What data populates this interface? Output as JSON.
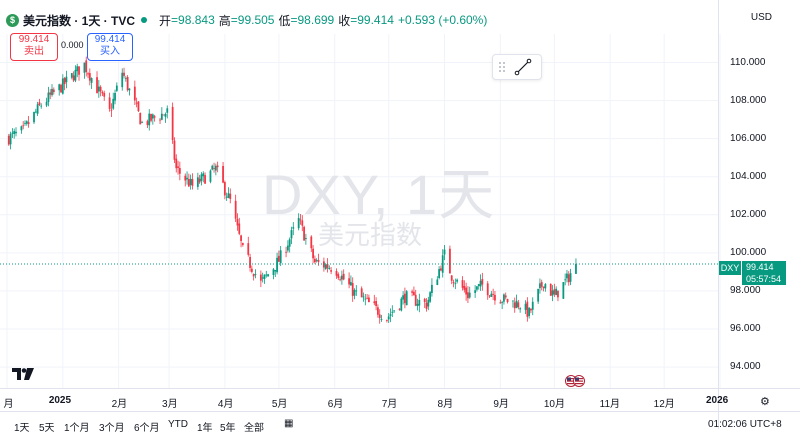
{
  "header": {
    "logo_icon": "$",
    "title": "美元指数 · 1天 · TVC",
    "open_label": "开",
    "open_value": "=98.843",
    "high_label": "高",
    "high_value": "=99.505",
    "low_label": "低",
    "low_value": "=98.699",
    "close_label": "收",
    "close_value": "=99.414",
    "change": "+0.593 (+0.60%)",
    "currency": "USD"
  },
  "trade": {
    "sell_price": "99.414",
    "sell_label": "卖出",
    "spread": "0.000",
    "buy_price": "99.414",
    "buy_label": "买入"
  },
  "watermark": {
    "symbol": "DXY, 1天",
    "name": "美元指数"
  },
  "price_tag": {
    "symbol": "DXY",
    "price": "99.414",
    "countdown": "05:57:54"
  },
  "bottom_bar": {
    "ranges": [
      "1天",
      "5天",
      "1个月",
      "3个月",
      "6个月",
      "YTD",
      "1年",
      "5年",
      "全部"
    ],
    "time": "01:02:06 UTC+8"
  },
  "colors": {
    "up": "#089981",
    "down": "#f23645",
    "price_line": "#089981"
  },
  "chart_data": {
    "type": "candlestick",
    "symbol": "DXY",
    "interval": "1天",
    "ylim": [
      92.9,
      111.5
    ],
    "y_ticks": [
      "110.000",
      "108.000",
      "106.000",
      "104.000",
      "102.000",
      "100.000",
      "98.000",
      "96.000",
      "94.000"
    ],
    "y_tick_values": [
      110,
      108,
      106,
      104,
      102,
      100,
      98,
      96,
      94
    ],
    "x_ticks": [
      {
        "label": "月",
        "date": "2024-12-01",
        "bold": false
      },
      {
        "label": "2025",
        "date": "2025-01-01",
        "bold": true
      },
      {
        "label": "2月",
        "date": "2025-02-01",
        "bold": false
      },
      {
        "label": "3月",
        "date": "2025-03-01",
        "bold": false
      },
      {
        "label": "4月",
        "date": "2025-04-01",
        "bold": false
      },
      {
        "label": "5月",
        "date": "2025-05-01",
        "bold": false
      },
      {
        "label": "6月",
        "date": "2025-06-01",
        "bold": false
      },
      {
        "label": "7月",
        "date": "2025-07-01",
        "bold": false
      },
      {
        "label": "8月",
        "date": "2025-08-01",
        "bold": false
      },
      {
        "label": "9月",
        "date": "2025-09-01",
        "bold": false
      },
      {
        "label": "10月",
        "date": "2025-10-01",
        "bold": false
      },
      {
        "label": "11月",
        "date": "2025-11-01",
        "bold": false
      },
      {
        "label": "12月",
        "date": "2025-12-01",
        "bold": false
      },
      {
        "label": "2026",
        "date": "2026-01-01",
        "bold": true
      }
    ],
    "close_anchors": [
      [
        "2024-12-01",
        106.0
      ],
      [
        "2024-12-10",
        106.4
      ],
      [
        "2024-12-20",
        107.8
      ],
      [
        "2025-01-02",
        108.9
      ],
      [
        "2025-01-13",
        109.9
      ],
      [
        "2025-01-27",
        107.4
      ],
      [
        "2025-02-03",
        109.5
      ],
      [
        "2025-02-14",
        106.8
      ],
      [
        "2025-02-28",
        107.4
      ],
      [
        "2025-03-05",
        104.4
      ],
      [
        "2025-03-14",
        103.5
      ],
      [
        "2025-03-27",
        104.4
      ],
      [
        "2025-04-04",
        102.7
      ],
      [
        "2025-04-11",
        100.1
      ],
      [
        "2025-04-21",
        98.4
      ],
      [
        "2025-05-01",
        99.6
      ],
      [
        "2025-05-12",
        101.7
      ],
      [
        "2025-05-21",
        99.5
      ],
      [
        "2025-06-01",
        99.2
      ],
      [
        "2025-06-12",
        97.9
      ],
      [
        "2025-06-30",
        96.6
      ],
      [
        "2025-07-10",
        97.7
      ],
      [
        "2025-07-22",
        97.3
      ],
      [
        "2025-08-01",
        99.9
      ],
      [
        "2025-08-05",
        98.8
      ],
      [
        "2025-08-14",
        97.8
      ],
      [
        "2025-08-22",
        98.3
      ],
      [
        "2025-09-01",
        97.6
      ],
      [
        "2025-09-12",
        97.3
      ],
      [
        "2025-09-17",
        96.8
      ],
      [
        "2025-09-25",
        98.5
      ],
      [
        "2025-10-01",
        97.7
      ],
      [
        "2025-10-08",
        98.6
      ],
      [
        "2025-10-13",
        99.414
      ]
    ],
    "last_close": 99.414
  }
}
